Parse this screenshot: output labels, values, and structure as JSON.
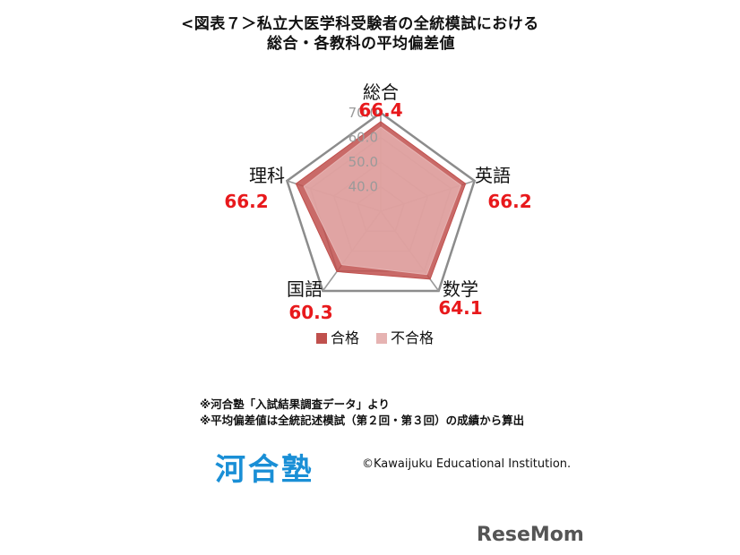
{
  "title": {
    "line1": "<図表７＞私立大医学科受験者の全統模試における",
    "line2": "総合・各教科の平均偏差値"
  },
  "chart_data": {
    "type": "radar",
    "categories": [
      "総合",
      "英語",
      "数学",
      "国語",
      "理科"
    ],
    "value_labels": [
      "66.4",
      "66.2",
      "64.1",
      "60.3",
      "66.2"
    ],
    "rlim": [
      30,
      70
    ],
    "ticks": [
      40,
      50,
      60,
      70
    ],
    "tick_labels": [
      "40.0",
      "50.0",
      "60.0",
      "70.0"
    ],
    "grid": true,
    "legend_position": "bottom",
    "series": [
      {
        "name": "合格",
        "values": [
          66.4,
          66.2,
          64.1,
          60.3,
          66.2
        ],
        "color": "#c0504d"
      },
      {
        "name": "不合格",
        "values": [
          64.2,
          64.2,
          61.8,
          56.8,
          62.8
        ],
        "color": "#e6b3b2"
      }
    ]
  },
  "notes": {
    "note1": "※河合塾「入試結果調査データ」より",
    "note2": "※平均偏差値は全統記述模試（第２回・第３回）の成績から算出"
  },
  "footer": {
    "logo": "河合塾",
    "copyright": "©Kawaijuku Educational Institution.",
    "watermark": "ReseMom"
  }
}
